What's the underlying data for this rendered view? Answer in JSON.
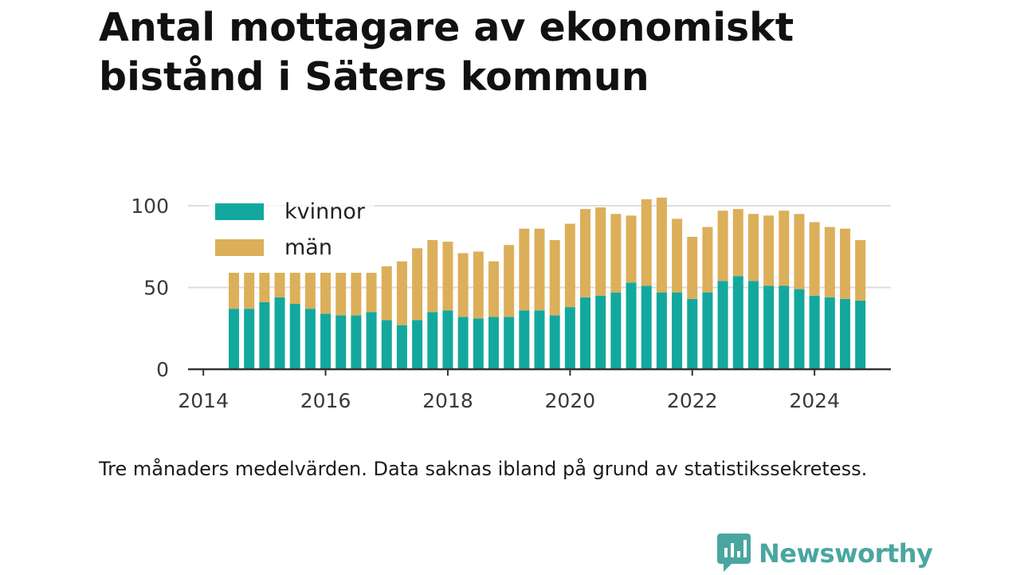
{
  "title": "Antal mottagare av ekonomiskt bistånd i Säters kommun",
  "note": "Tre månaders medelvärden. Data saknas ibland på grund av statistikssekretess.",
  "brand": {
    "name": "Newsworthy",
    "icon": "newsworthy-logo-icon",
    "color": "#4aa6a0"
  },
  "colors": {
    "kvinnor": "#13a89e",
    "man": "#dcaf5a",
    "grid": "#dddddd",
    "axis": "#333333"
  },
  "chart_data": {
    "type": "bar",
    "stacked": true,
    "legend_position": "top-left",
    "grid": true,
    "xlim": [
      2013.75,
      2025.25
    ],
    "ylim": [
      0,
      106
    ],
    "x_ticks": [
      "2014",
      "2016",
      "2018",
      "2020",
      "2022",
      "2024"
    ],
    "y_ticks": [
      "0",
      "50",
      "100"
    ],
    "x": [
      2014.5,
      2014.75,
      2015.0,
      2015.25,
      2015.5,
      2015.75,
      2016.0,
      2016.25,
      2016.5,
      2016.75,
      2017.0,
      2017.25,
      2017.5,
      2017.75,
      2018.0,
      2018.25,
      2018.5,
      2018.75,
      2019.0,
      2019.25,
      2019.5,
      2019.75,
      2020.0,
      2020.25,
      2020.5,
      2020.75,
      2021.0,
      2021.25,
      2021.5,
      2021.75,
      2022.0,
      2022.25,
      2022.5,
      2022.75,
      2023.0,
      2023.25,
      2023.5,
      2023.75,
      2024.0,
      2024.25,
      2024.5,
      2024.75
    ],
    "series": [
      {
        "name": "kvinnor",
        "values": [
          37,
          37,
          41,
          44,
          40,
          37,
          34,
          33,
          33,
          35,
          30,
          27,
          30,
          35,
          36,
          32,
          31,
          32,
          32,
          36,
          36,
          33,
          38,
          44,
          45,
          47,
          53,
          51,
          47,
          47,
          43,
          47,
          54,
          57,
          54,
          51,
          51,
          49,
          45,
          44,
          43,
          42
        ]
      },
      {
        "name": "män",
        "values": [
          22,
          22,
          18,
          15,
          19,
          22,
          25,
          26,
          26,
          24,
          33,
          39,
          44,
          44,
          42,
          39,
          41,
          34,
          44,
          50,
          50,
          46,
          51,
          54,
          54,
          48,
          41,
          53,
          58,
          45,
          38,
          40,
          43,
          41,
          41,
          43,
          46,
          46,
          45,
          43,
          43,
          37
        ]
      }
    ]
  }
}
